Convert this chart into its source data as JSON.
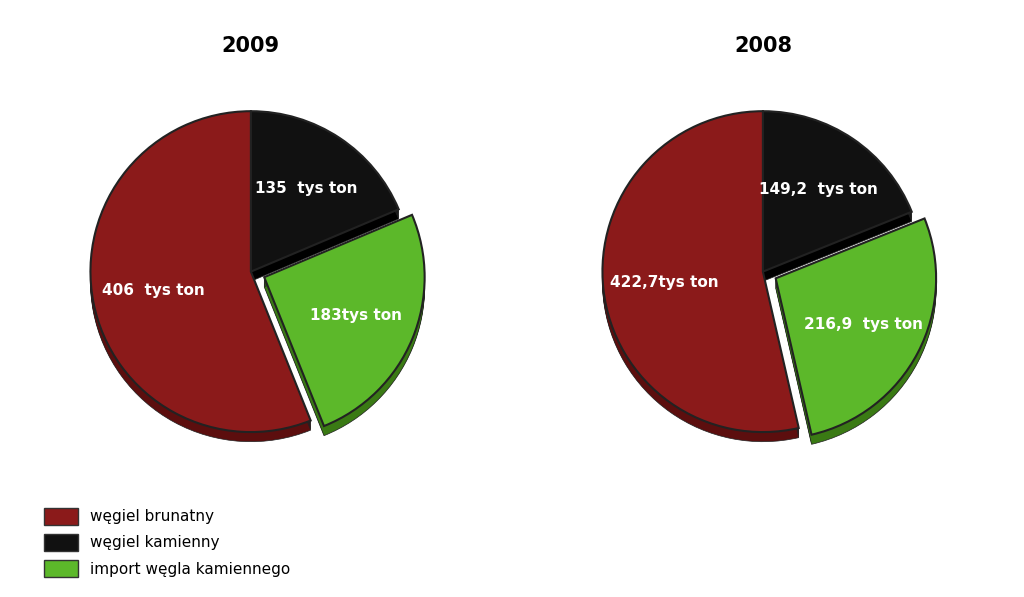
{
  "chart2009": {
    "title": "2009",
    "values": [
      135,
      183,
      406
    ],
    "labels": [
      "135  tys ton",
      "183tys ton",
      "406  tys ton"
    ],
    "colors": [
      "#111111",
      "#5CB82A",
      "#8B1A1A"
    ],
    "dark_colors": [
      "#000000",
      "#3A7A14",
      "#5C0E0E"
    ],
    "explode_idx": 1,
    "explode_dist": 0.09
  },
  "chart2008": {
    "title": "2008",
    "values": [
      149.2,
      216.9,
      422.7
    ],
    "labels": [
      "149,2  tys ton",
      "216,9  tys ton",
      "422,7tys ton"
    ],
    "colors": [
      "#111111",
      "#5CB82A",
      "#8B1A1A"
    ],
    "dark_colors": [
      "#000000",
      "#3A7A14",
      "#5C0E0E"
    ],
    "explode_idx": 1,
    "explode_dist": 0.09
  },
  "legend_labels": [
    "węgiel brunatny",
    "węgiel kamienny",
    "import węgla kamiennego"
  ],
  "legend_colors": [
    "#8B1A1A",
    "#111111",
    "#5CB82A"
  ],
  "background_color": "#FFFFFF",
  "title_fontsize": 15,
  "label_fontsize": 11
}
